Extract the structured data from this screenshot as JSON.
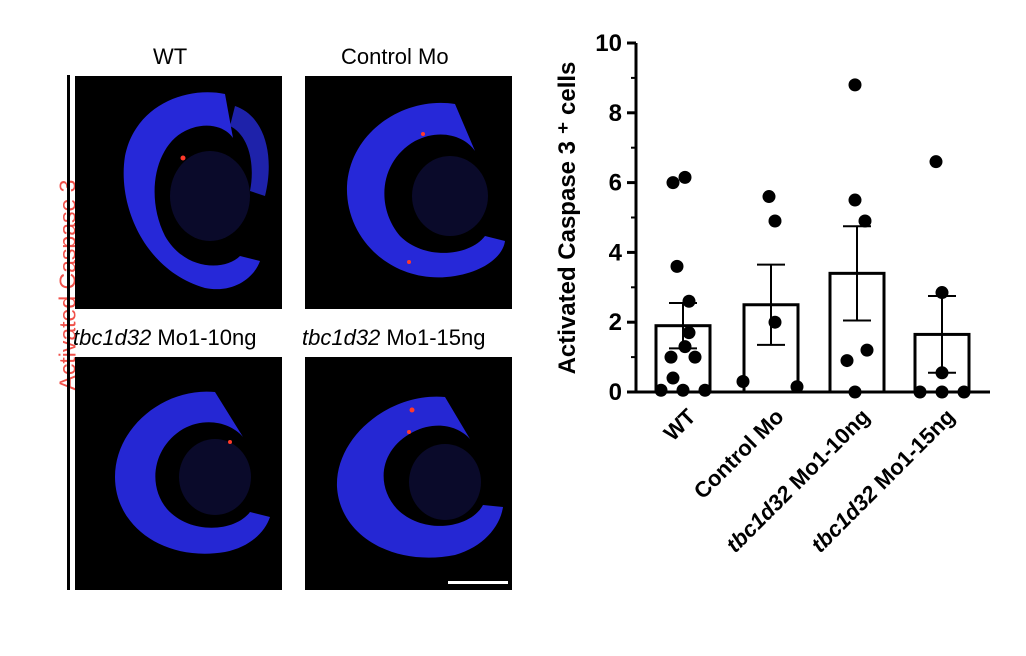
{
  "figure": {
    "panel_labels": [
      "WT",
      "Control Mo",
      "Mo1-10ng",
      "Mo1-15ng"
    ],
    "panel_label_prefix": "tbc1d32",
    "side_label": "Activated Caspase 3",
    "colors": {
      "nuclei": "#2a2cf0",
      "caspase": "#ff3a2a",
      "side_label": "#f0514a"
    }
  },
  "chart_data": {
    "type": "bar",
    "categories": [
      "WT",
      "Control Mo",
      "tbc1d32 Mo1-10ng",
      "tbc1d32 Mo1-15ng"
    ],
    "category_parts": [
      {
        "italic": "",
        "plain": "WT"
      },
      {
        "italic": "",
        "plain": "Control Mo"
      },
      {
        "italic": "tbc1d32",
        "plain": " Mo1-10ng"
      },
      {
        "italic": "tbc1d32",
        "plain": " Mo1-15ng"
      }
    ],
    "values": [
      1.9,
      2.5,
      3.4,
      1.65
    ],
    "sem": [
      0.65,
      1.15,
      1.35,
      1.1
    ],
    "points": [
      [
        6.0,
        6.15,
        3.6,
        2.6,
        1.7,
        1.3,
        1.0,
        1.0,
        0.4,
        0.05,
        0.05,
        0.05
      ],
      [
        5.6,
        4.9,
        2.0,
        0.3,
        0.15
      ],
      [
        8.8,
        5.5,
        4.9,
        1.2,
        0.9,
        0.0
      ],
      [
        6.6,
        2.85,
        0.55,
        0.0,
        0.0,
        0.0
      ]
    ],
    "ylabel": "Activated Caspase 3 ⁺ cells",
    "yticks": [
      0,
      2,
      4,
      6,
      8,
      10
    ],
    "ylim": [
      0,
      10
    ]
  }
}
